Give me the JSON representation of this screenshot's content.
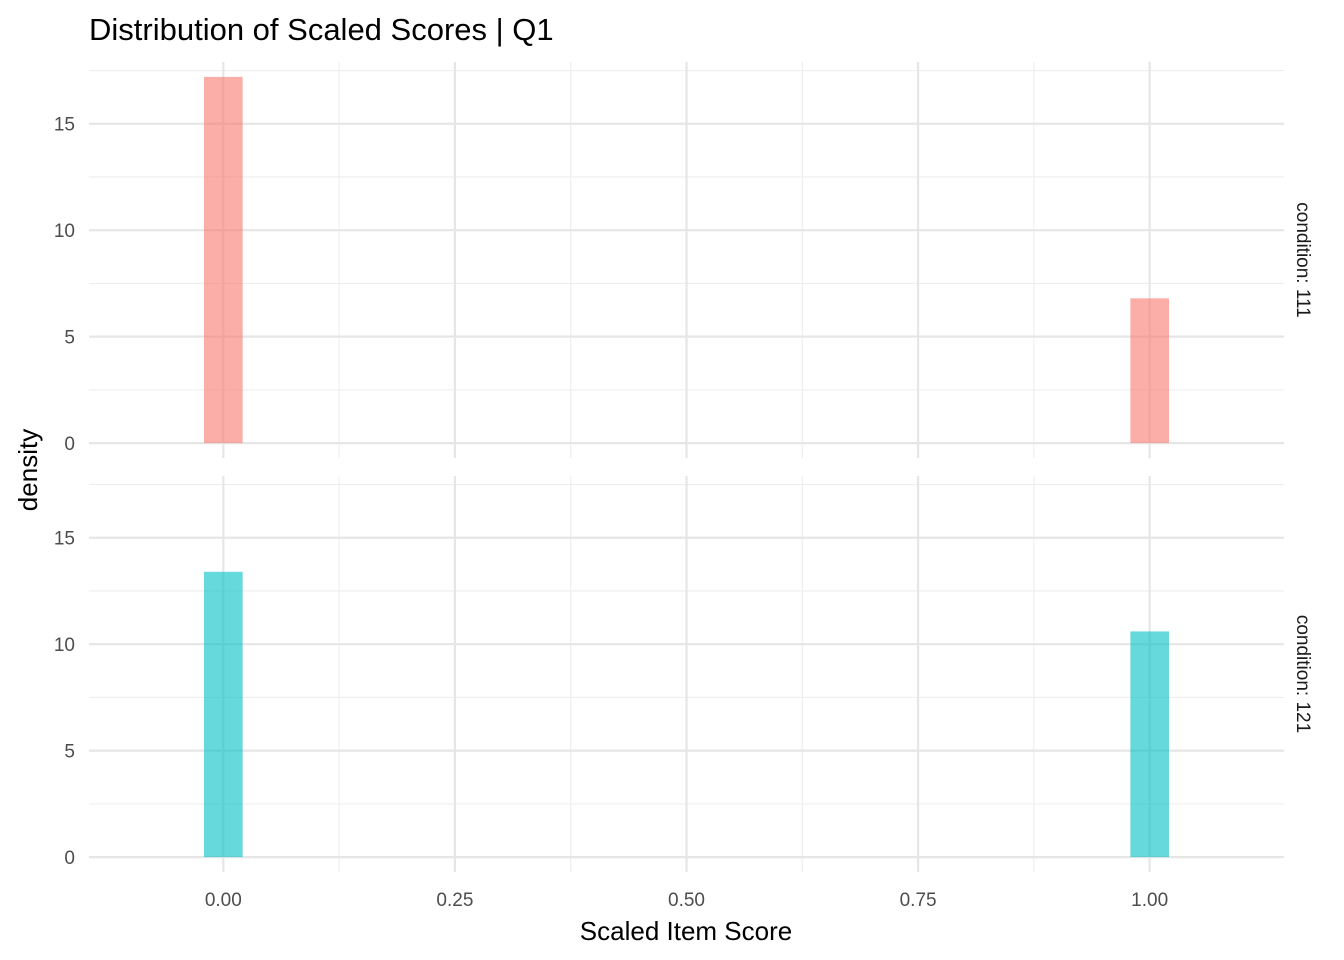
{
  "chart_data": {
    "type": "bar",
    "title": "Distribution of Scaled Scores | Q1",
    "xlabel": "Scaled Item Score",
    "ylabel": "density",
    "xlim": [
      -0.145,
      1.145
    ],
    "ylim": [
      -0.7,
      17.9
    ],
    "x_ticks": [
      0,
      0.25,
      0.5,
      0.75,
      1
    ],
    "x_tick_labels": [
      "0.00",
      "0.25",
      "0.50",
      "0.75",
      "1.00"
    ],
    "y_ticks": [
      0,
      5,
      10,
      15
    ],
    "y_tick_labels": [
      "0",
      "5",
      "10",
      "15"
    ],
    "grid": true,
    "bin_width": 0.0417,
    "panels": [
      {
        "strip_label": "condition: 111",
        "color": "#F8766D",
        "bars": [
          {
            "x": 0,
            "density": 17.2
          },
          {
            "x": 1,
            "density": 6.8
          }
        ]
      },
      {
        "strip_label": "condition: 121",
        "color": "#00BFC4",
        "bars": [
          {
            "x": 0,
            "density": 13.4
          },
          {
            "x": 1,
            "density": 10.6
          }
        ]
      }
    ]
  }
}
